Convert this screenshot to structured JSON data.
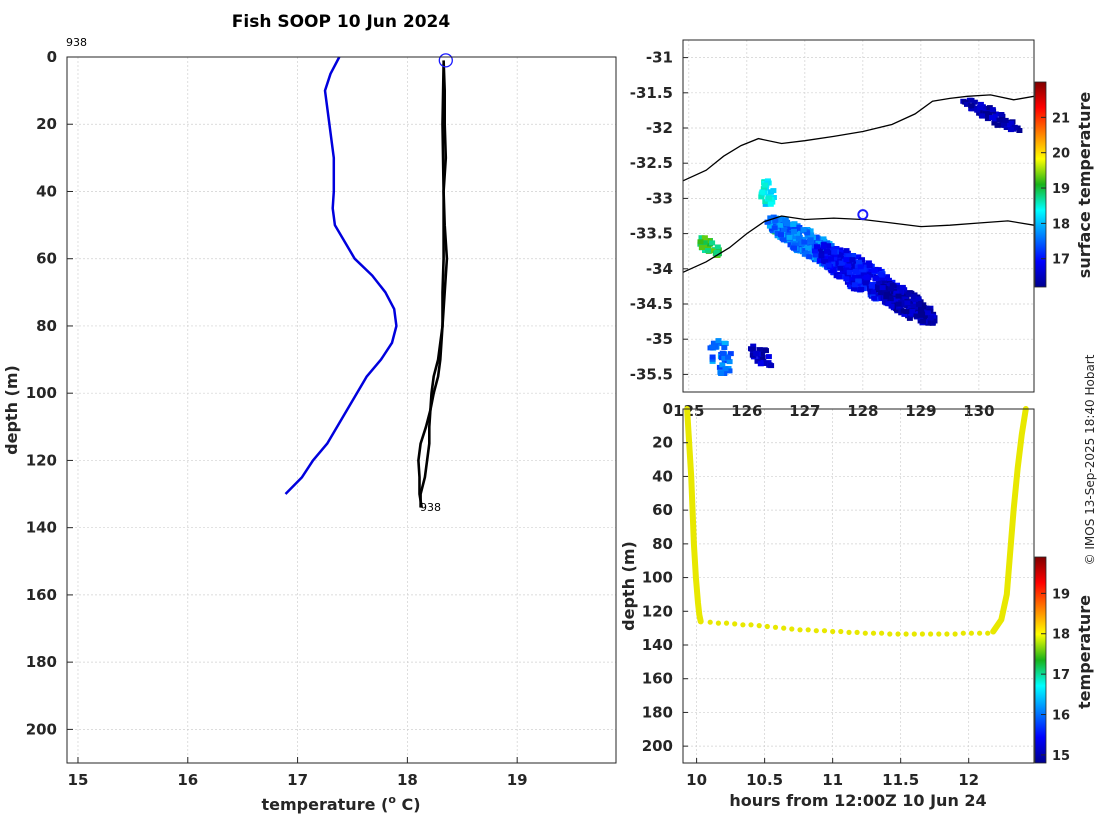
{
  "figure_title": "Fish SOOP 10 Jun 2024",
  "credit": "© IMOS 13-Sep-2025 18:40 Hobart",
  "colors": {
    "profile_current": "#000000",
    "profile_climatology": "#0000dd",
    "marker": "#1a1aff",
    "coast": "#000000",
    "path": "#e8e800"
  },
  "chart_data": [
    {
      "id": "profile",
      "type": "line",
      "title": "Fish SOOP 10 Jun 2024",
      "xlabel": "temperature (",
      "xlabel_sup": "o",
      "xlabel_tail": " C)",
      "ylabel": "depth (m)",
      "xlim": [
        14.9,
        19.9
      ],
      "ylim": [
        0,
        210
      ],
      "xticks": [
        "15",
        "16",
        "17",
        "18",
        "19"
      ],
      "yticks": [
        "0",
        "20",
        "40",
        "60",
        "80",
        "100",
        "120",
        "140",
        "160",
        "180",
        "200"
      ],
      "profile_id_top": "938",
      "profile_id_bottom": "938",
      "series": [
        {
          "name": "climatology",
          "temp": [
            17.38,
            17.3,
            17.25,
            17.29,
            17.33,
            17.33,
            17.32,
            17.34,
            17.52,
            17.68,
            17.8,
            17.88,
            17.9,
            17.86,
            17.76,
            17.63,
            17.45,
            17.27,
            17.14,
            17.04,
            16.89
          ],
          "depth": [
            0,
            5,
            10,
            20,
            30,
            40,
            45,
            50,
            60,
            65,
            70,
            75,
            80,
            85,
            90,
            95,
            105,
            115,
            120,
            125,
            130
          ]
        },
        {
          "name": "down cast",
          "temp": [
            18.33,
            18.34,
            18.34,
            18.35,
            18.33,
            18.34,
            18.36,
            18.34,
            18.32,
            18.3,
            18.28,
            18.24,
            18.22,
            18.21,
            18.2,
            18.2,
            18.18,
            18.16,
            18.12,
            18.12
          ],
          "depth": [
            1,
            10,
            20,
            30,
            40,
            50,
            60,
            70,
            80,
            85,
            90,
            95,
            100,
            105,
            110,
            115,
            120,
            125,
            130,
            134
          ]
        },
        {
          "name": "up cast",
          "temp": [
            18.13,
            18.11,
            18.11,
            18.1,
            18.12,
            18.17,
            18.21,
            18.24,
            18.28,
            18.3,
            18.32,
            18.32,
            18.33,
            18.33,
            18.33,
            18.32,
            18.33
          ],
          "depth": [
            134,
            130,
            125,
            120,
            115,
            110,
            105,
            100,
            95,
            90,
            80,
            70,
            60,
            50,
            40,
            20,
            2
          ]
        }
      ],
      "marker": {
        "temp": 18.35,
        "depth": 1
      }
    },
    {
      "id": "map",
      "type": "heatmap",
      "xlim": [
        124.9,
        130.95
      ],
      "ylim": [
        -35.75,
        -30.75
      ],
      "xticks": [
        {
          "v": 125,
          "t": "125"
        },
        {
          "v": 126,
          "t": "126"
        },
        {
          "v": 127,
          "t": "127"
        },
        {
          "v": 128,
          "t": "128"
        },
        {
          "v": 129,
          "t": "129"
        },
        {
          "v": 130,
          "t": "130"
        }
      ],
      "yticks": [
        "-31",
        "-31.5",
        "-32",
        "-32.5",
        "-33",
        "-33.5",
        "-34",
        "-34.5",
        "-35",
        "-35.5"
      ],
      "colorbar_label": "surface temperature",
      "colorbar_range": [
        16.2,
        22
      ],
      "colorbar_ticks": [
        "17",
        "18",
        "19",
        "20",
        "21"
      ],
      "coast_north": {
        "lon": [
          124.9,
          125.3,
          125.6,
          125.9,
          126.2,
          126.6,
          127.0,
          127.5,
          128.0,
          128.5,
          128.9,
          129.2,
          129.5,
          129.8,
          130.2,
          130.6,
          130.95
        ],
        "lat": [
          -32.75,
          -32.6,
          -32.4,
          -32.25,
          -32.15,
          -32.22,
          -32.18,
          -32.12,
          -32.05,
          -31.95,
          -31.8,
          -31.62,
          -31.58,
          -31.55,
          -31.53,
          -31.6,
          -31.55
        ]
      },
      "coast_south": {
        "lon": [
          124.9,
          125.3,
          125.7,
          126.0,
          126.3,
          126.6,
          127.0,
          127.5,
          128.0,
          128.5,
          129.0,
          129.5,
          130.0,
          130.5,
          130.95
        ],
        "lat": [
          -34.05,
          -33.9,
          -33.7,
          -33.5,
          -33.33,
          -33.25,
          -33.3,
          -33.28,
          -33.3,
          -33.35,
          -33.4,
          -33.38,
          -33.35,
          -33.32,
          -33.38
        ]
      },
      "sst_blobs": [
        {
          "lon": 126.3,
          "lat": -32.9,
          "rlon": 0.12,
          "rlat": 0.2,
          "sst": 18.3,
          "n": 30
        },
        {
          "lon": 125.3,
          "lat": -33.65,
          "rlon": 0.2,
          "rlat": 0.1,
          "sst": 19.0,
          "n": 30
        },
        {
          "lon": 126.5,
          "lat": -33.4,
          "rlon": 0.15,
          "rlat": 0.1,
          "sst": 18.8,
          "n": 40
        },
        {
          "lon": 127.0,
          "lat": -33.6,
          "rlon": 0.7,
          "rlat": 0.2,
          "sst": 17.6,
          "n": 330
        },
        {
          "lon": 127.9,
          "lat": -34.05,
          "rlon": 0.8,
          "rlat": 0.25,
          "sst": 16.9,
          "n": 330
        },
        {
          "lon": 128.7,
          "lat": -34.45,
          "rlon": 0.5,
          "rlat": 0.2,
          "sst": 16.4,
          "n": 240
        },
        {
          "lon": 130.2,
          "lat": -31.8,
          "rlon": 0.55,
          "rlat": 0.1,
          "sst": 16.4,
          "n": 70
        },
        {
          "lon": 125.5,
          "lat": -35.2,
          "rlon": 0.2,
          "rlat": 0.25,
          "sst": 17.6,
          "n": 40
        },
        {
          "lon": 126.2,
          "lat": -35.2,
          "rlon": 0.2,
          "rlat": 0.12,
          "sst": 16.5,
          "n": 30
        }
      ],
      "marker": {
        "lon": 128.0,
        "lat": -33.23
      }
    },
    {
      "id": "track",
      "type": "scatter",
      "xlabel": "hours from 12:00Z 10 Jun 24",
      "ylabel": "depth (m)",
      "xlim": [
        9.9,
        12.48
      ],
      "ylim": [
        0,
        210
      ],
      "xticks": [
        "10",
        "10.5",
        "11",
        "11.5",
        "12"
      ],
      "yticks": [
        "0",
        "20",
        "40",
        "60",
        "80",
        "100",
        "120",
        "140",
        "160",
        "180",
        "200"
      ],
      "colorbar_label": "temperature",
      "colorbar_range": [
        14.8,
        19.9
      ],
      "colorbar_ticks": [
        "15",
        "16",
        "17",
        "18",
        "19"
      ],
      "temperature": 18.3,
      "descent": {
        "hours": [
          9.93,
          9.96,
          9.98,
          9.995,
          10.01,
          10.02,
          10.03
        ],
        "depth": [
          0,
          40,
          80,
          100,
          115,
          122,
          126
        ]
      },
      "bottom": {
        "hours": [
          10.03,
          10.1,
          10.16,
          10.22,
          10.28,
          10.34,
          10.4,
          10.46,
          10.52,
          10.58,
          10.64,
          10.7,
          10.76,
          10.82,
          10.88,
          10.94,
          11.0,
          11.06,
          11.12,
          11.18,
          11.24,
          11.3,
          11.36,
          11.42,
          11.48,
          11.54,
          11.6,
          11.66,
          11.72,
          11.78,
          11.84,
          11.9,
          11.96,
          12.02,
          12.08,
          12.14,
          12.18
        ],
        "depth": [
          126,
          126.5,
          127,
          127,
          127.5,
          128,
          128,
          128.5,
          129,
          129.5,
          130,
          130.5,
          131,
          131,
          131.5,
          131.5,
          132,
          132,
          132.5,
          132.5,
          133,
          133,
          133,
          133.5,
          133.5,
          133.5,
          133.5,
          133.5,
          133.5,
          133.5,
          133.5,
          133.5,
          133,
          133,
          133,
          133,
          132
        ]
      },
      "ascent": {
        "hours": [
          12.18,
          12.24,
          12.28,
          12.3,
          12.33,
          12.36,
          12.39,
          12.42
        ],
        "depth": [
          132,
          125,
          110,
          90,
          60,
          35,
          15,
          0
        ]
      }
    }
  ]
}
